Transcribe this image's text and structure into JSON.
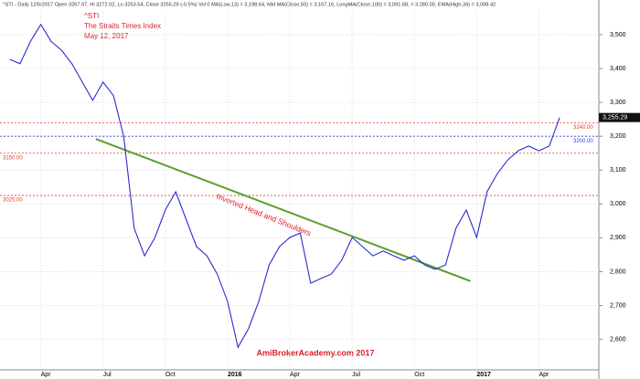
{
  "chart_data": {
    "type": "line",
    "header": "^STI - Daily 12/5/2017 Open 3267.97, Hi 3272.02, Lo 3253.54, Close 3255.29 (-0.5%) Vol 0 MA(Low,13) = 3,198.64, Mid MA(Close,50) = 3,167.16, LongMA(Close,100) = 3,091.68, = 3,280.00, EMA(High,34) = 3,098.42",
    "title": "^STI",
    "subtitle": "The Straits Times Index",
    "date": "May 12, 2017",
    "annotation": "Inverted Head and Shoulders",
    "watermark": "AmiBrokerAcademy.com  2017",
    "categories": [
      null,
      null,
      null,
      "Apr",
      null,
      null,
      null,
      null,
      null,
      "Jul",
      null,
      null,
      null,
      null,
      null,
      "Oct",
      null,
      null,
      null,
      null,
      null,
      "2016",
      null,
      null,
      null,
      null,
      null,
      "Apr",
      null,
      null,
      null,
      null,
      null,
      "Jul",
      null,
      null,
      null,
      null,
      null,
      "Oct",
      null,
      null,
      null,
      null,
      null,
      "2017",
      null,
      null,
      null,
      null,
      null,
      "Apr",
      null,
      null
    ],
    "series": [
      {
        "name": "Close",
        "color": "#2b2bd0",
        "values": [
          3427,
          3414,
          3480,
          3530,
          3480,
          3454,
          3414,
          3360,
          3306,
          3360,
          3320,
          3198,
          2928,
          2847,
          2901,
          2982,
          3036,
          2955,
          2874,
          2847,
          2793,
          2712,
          2577,
          2631,
          2712,
          2820,
          2874,
          2901,
          2914,
          2766,
          2780,
          2793,
          2834,
          2901,
          2874,
          2847,
          2861,
          2847,
          2834,
          2847,
          2820,
          2807,
          2820,
          2928,
          2982,
          2901,
          3036,
          3090,
          3130,
          3157,
          3171,
          3157,
          3171,
          3255.29
        ]
      }
    ],
    "last_price": {
      "value": 3255.29,
      "label": "3,255.29"
    },
    "levels": [
      {
        "value": 3240,
        "label": "3240.00",
        "color": "#e0402a",
        "side": "right"
      },
      {
        "value": 3200,
        "label": "3200.00",
        "color": "#3a3ad8",
        "side": "right"
      },
      {
        "value": 3150,
        "label": "3150.00",
        "color": "#e0402a",
        "side": "left"
      },
      {
        "value": 3025,
        "label": "3025.00",
        "color": "#e0402a",
        "side": "left"
      }
    ],
    "trendline": {
      "x": [
        8.3,
        44.4
      ],
      "y": [
        3192,
        2772
      ],
      "color": "#5aa02c"
    },
    "ylim": [
      2510,
      3570
    ],
    "yticks": [
      {
        "value": 2600,
        "label": "2,600"
      },
      {
        "value": 2700,
        "label": "2,700"
      },
      {
        "value": 2800,
        "label": "2,800"
      },
      {
        "value": 2900,
        "label": "2,900"
      },
      {
        "value": 3000,
        "label": "3,000"
      },
      {
        "value": 3100,
        "label": "3,100"
      },
      {
        "value": 3200,
        "label": "3,200"
      },
      {
        "value": 3300,
        "label": "3,300"
      },
      {
        "value": 3400,
        "label": "3,400"
      },
      {
        "value": 3500,
        "label": "3,500"
      }
    ],
    "grid": true
  }
}
